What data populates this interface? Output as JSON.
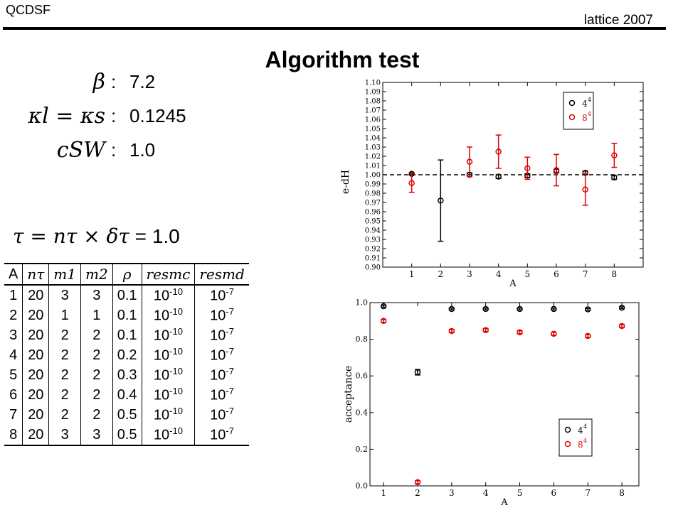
{
  "header": {
    "left": "QCDSF",
    "right": "lattice 2007"
  },
  "title": "Algorithm test",
  "params": [
    {
      "lhs": "β",
      "colon": ":",
      "value": "7.2"
    },
    {
      "lhs": "κl = κs",
      "colon": ":",
      "value": "0.1245"
    },
    {
      "lhs": "cSW",
      "colon": ":",
      "value": "1.0"
    }
  ],
  "tau_line": {
    "lhs": "τ = nτ × δτ",
    "eq": "=",
    "value": "1.0"
  },
  "table": {
    "headers": [
      "A",
      "nτ",
      "m1",
      "m2",
      "ρ",
      "resmc",
      "resmd"
    ],
    "rows": [
      [
        "1",
        "20",
        "3",
        "3",
        "0.1",
        "10",
        "-10",
        "10",
        "-7"
      ],
      [
        "2",
        "20",
        "1",
        "1",
        "0.1",
        "10",
        "-10",
        "10",
        "-7"
      ],
      [
        "3",
        "20",
        "2",
        "2",
        "0.1",
        "10",
        "-10",
        "10",
        "-7"
      ],
      [
        "4",
        "20",
        "2",
        "2",
        "0.2",
        "10",
        "-10",
        "10",
        "-7"
      ],
      [
        "5",
        "20",
        "2",
        "2",
        "0.3",
        "10",
        "-10",
        "10",
        "-7"
      ],
      [
        "6",
        "20",
        "2",
        "2",
        "0.4",
        "10",
        "-10",
        "10",
        "-7"
      ],
      [
        "7",
        "20",
        "2",
        "2",
        "0.5",
        "10",
        "-10",
        "10",
        "-7"
      ],
      [
        "8",
        "20",
        "3",
        "3",
        "0.5",
        "10",
        "-10",
        "10",
        "-7"
      ]
    ]
  },
  "chart_data": [
    {
      "type": "scatter",
      "xlabel": "A",
      "ylabel": "e-dH",
      "x": [
        1,
        2,
        3,
        4,
        5,
        6,
        7,
        8
      ],
      "xlim": [
        0,
        9
      ],
      "ylim": [
        0.9,
        1.1
      ],
      "yticks": [
        "0.90",
        "0.91",
        "0.92",
        "0.93",
        "0.94",
        "0.95",
        "0.96",
        "0.97",
        "0.98",
        "0.99",
        "1.00",
        "1.01",
        "1.02",
        "1.03",
        "1.04",
        "1.05",
        "1.06",
        "1.07",
        "1.08",
        "1.09",
        "1.10"
      ],
      "xticks": [
        "1",
        "2",
        "3",
        "4",
        "5",
        "6",
        "7",
        "8"
      ],
      "reference_line": 1.0,
      "legend_position": "top-right",
      "series": [
        {
          "name": "4^4",
          "color": "#000000",
          "values": [
            1.001,
            0.972,
            1.0,
            0.998,
            0.999,
            1.004,
            1.002,
            0.997
          ],
          "errors": [
            0.001,
            0.044,
            0.002,
            0.002,
            0.002,
            0.002,
            0.002,
            0.002
          ]
        },
        {
          "name": "8^4",
          "color": "#e00000",
          "values": [
            0.991,
            null,
            1.014,
            1.025,
            1.007,
            1.005,
            0.984,
            1.021
          ],
          "errors": [
            0.01,
            null,
            0.016,
            0.018,
            0.012,
            0.017,
            0.017,
            0.013
          ]
        }
      ]
    },
    {
      "type": "scatter",
      "xlabel": "A",
      "ylabel": "acceptance",
      "x": [
        1,
        2,
        3,
        4,
        5,
        6,
        7,
        8
      ],
      "xlim": [
        0.6,
        8.5
      ],
      "ylim": [
        0.0,
        1.0
      ],
      "yticks": [
        "0.0",
        "0.2",
        "0.4",
        "0.6",
        "0.8",
        "1.0"
      ],
      "xticks": [
        "1",
        "2",
        "3",
        "4",
        "5",
        "6",
        "7",
        "8"
      ],
      "legend_position": "bottom-right",
      "series": [
        {
          "name": "4^4",
          "color": "#000000",
          "values": [
            0.98,
            0.62,
            0.965,
            0.965,
            0.965,
            0.965,
            0.963,
            0.972
          ],
          "errors": [
            0.005,
            0.015,
            0.005,
            0.005,
            0.005,
            0.005,
            0.005,
            0.005
          ]
        },
        {
          "name": "8^4",
          "color": "#e00000",
          "values": [
            0.9,
            0.02,
            0.845,
            0.85,
            0.838,
            0.83,
            0.818,
            0.872
          ],
          "errors": [
            0.008,
            0.008,
            0.008,
            0.008,
            0.008,
            0.008,
            0.008,
            0.008
          ]
        }
      ]
    }
  ]
}
